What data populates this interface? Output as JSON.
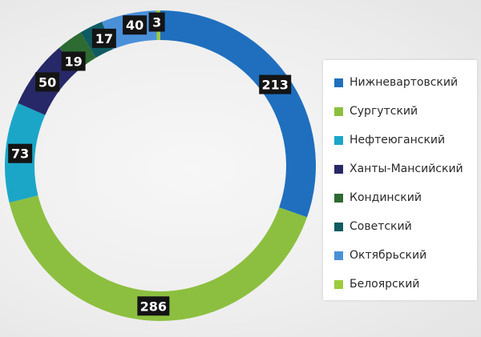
{
  "chart_data": {
    "type": "pie",
    "style": "donut",
    "categories": [
      "Нижневартовский",
      "Сургутский",
      "Нефтеюганский",
      "Ханты-Мансийский",
      "Кондинский",
      "Советский",
      "Октябрьский",
      "Белоярский"
    ],
    "values": [
      213,
      286,
      73,
      50,
      19,
      17,
      40,
      3
    ],
    "colors": [
      "#1f6fbe",
      "#8cbf3f",
      "#1ba6c8",
      "#272868",
      "#2d6b32",
      "#0f5b62",
      "#4a90d9",
      "#9ccb3b"
    ],
    "legend_position": "right"
  }
}
